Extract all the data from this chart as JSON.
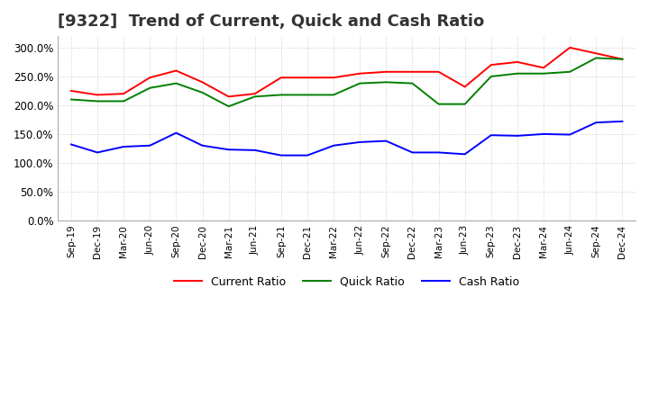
{
  "title": "[9322]  Trend of Current, Quick and Cash Ratio",
  "title_fontsize": 13,
  "x_labels": [
    "Sep-19",
    "Dec-19",
    "Mar-20",
    "Jun-20",
    "Sep-20",
    "Dec-20",
    "Mar-21",
    "Jun-21",
    "Sep-21",
    "Dec-21",
    "Mar-22",
    "Jun-22",
    "Sep-22",
    "Dec-22",
    "Mar-23",
    "Jun-23",
    "Sep-23",
    "Dec-23",
    "Mar-24",
    "Jun-24",
    "Sep-24",
    "Dec-24"
  ],
  "current_ratio": [
    225,
    218,
    220,
    248,
    260,
    240,
    215,
    220,
    248,
    248,
    248,
    255,
    258,
    258,
    258,
    232,
    270,
    275,
    265,
    300,
    290,
    280
  ],
  "quick_ratio": [
    210,
    207,
    207,
    230,
    238,
    222,
    198,
    215,
    218,
    218,
    218,
    238,
    240,
    238,
    202,
    202,
    250,
    255,
    255,
    258,
    282,
    280
  ],
  "cash_ratio": [
    132,
    118,
    128,
    130,
    152,
    130,
    123,
    122,
    113,
    113,
    130,
    136,
    138,
    118,
    118,
    115,
    148,
    147,
    150,
    149,
    170,
    172
  ],
  "current_color": "#FF0000",
  "quick_color": "#008000",
  "cash_color": "#0000FF",
  "line_width": 1.4,
  "background_color": "#FFFFFF",
  "grid_color": "#CCCCCC",
  "ylim_min": 0,
  "ylim_max": 320,
  "yticks": [
    0,
    50,
    100,
    150,
    200,
    250,
    300
  ],
  "legend_labels": [
    "Current Ratio",
    "Quick Ratio",
    "Cash Ratio"
  ]
}
